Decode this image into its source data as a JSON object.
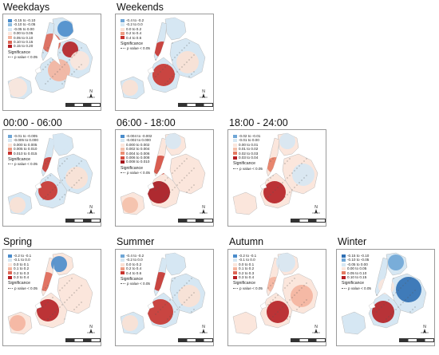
{
  "panels": [
    {
      "id": "weekdays",
      "title": "Weekdays",
      "legend": [
        "-0.15 to -0.10",
        "-0.10 to -0.05",
        "-0.05 to 0.00",
        "0.00 to 0.05",
        "0.05 to 0.10",
        "0.10 to 0.15",
        "0.15 to 0.20"
      ],
      "colors": [
        "#4a8ccb",
        "#8fbde0",
        "#d6e7f3",
        "#fbe6dc",
        "#f4b49e",
        "#de6655",
        "#b51f24"
      ],
      "significance_label": "Significance",
      "p_label": "p value < 0.05"
    },
    {
      "id": "weekends",
      "title": "Weekends",
      "legend": [
        "-0.4 to -0.2",
        "-0.2 to 0.0",
        "0.0 to 0.2",
        "0.2 to 0.4",
        "0.4 to 0.6"
      ],
      "colors": [
        "#6fa6d6",
        "#d6e7f3",
        "#fbe1d4",
        "#ee9b82",
        "#c8332d"
      ],
      "significance_label": "Significance",
      "p_label": "p value < 0.05"
    },
    {
      "id": "night",
      "title": "00:00 - 06:00",
      "legend": [
        "-0.01 to -0.005",
        "-0.005 to 0.000",
        "0.000 to 0.005",
        "0.005 to 0.010",
        "0.010 to 0.015"
      ],
      "colors": [
        "#6fa6d6",
        "#d6e7f3",
        "#fbe1d4",
        "#ee9b82",
        "#c8332d"
      ],
      "significance_label": "Significance",
      "p_label": "p value < 0.05"
    },
    {
      "id": "day",
      "title": "06:00 - 18:00",
      "legend": [
        "-0.004 to -0.002",
        "-0.002 to 0.000",
        "0.000 to 0.002",
        "0.002 to 0.004",
        "0.004 to 0.006",
        "0.006 to 0.008",
        "0.008 to 0.010"
      ],
      "colors": [
        "#4a8ccb",
        "#d6e7f3",
        "#fbe6dc",
        "#f4c0aa",
        "#ec8f74",
        "#d54e40",
        "#a5151d"
      ],
      "significance_label": "Significance",
      "p_label": "p value < 0.05"
    },
    {
      "id": "evening",
      "title": "18:00 - 24:00",
      "legend": [
        "-0.02 to -0.01",
        "-0.01 to 0.00",
        "0.00 to 0.01",
        "0.01 to 0.02",
        "0.02 to 0.03",
        "0.03 to 0.04"
      ],
      "colors": [
        "#6fa6d6",
        "#d6e7f3",
        "#fbe6dc",
        "#f4c0aa",
        "#e57b62",
        "#b51f24"
      ],
      "significance_label": "Significance",
      "p_label": "p value < 0.05"
    },
    {
      "id": "spring",
      "title": "Spring",
      "legend": [
        "-0.2 to -0.1",
        "-0.1 to 0.0",
        "0.0 to 0.1",
        "0.1 to 0.2",
        "0.2 to 0.3",
        "0.3 to 0.4"
      ],
      "colors": [
        "#4a8ccb",
        "#d6e7f3",
        "#fbe6dc",
        "#f4b49e",
        "#de6655",
        "#b51f24"
      ],
      "significance_label": "Significance",
      "p_label": "p value < 0.05"
    },
    {
      "id": "summer",
      "title": "Summer",
      "legend": [
        "-0.4 to -0.2",
        "-0.2 to 0.0",
        "0.0 to 0.2",
        "0.2 to 0.4",
        "0.4 to 0.6"
      ],
      "colors": [
        "#6fa6d6",
        "#d6e7f3",
        "#fbe1d4",
        "#ee9b82",
        "#c8332d"
      ],
      "significance_label": "Significance",
      "p_label": "p value < 0.05"
    },
    {
      "id": "autumn",
      "title": "Autumn",
      "legend": [
        "-0.2 to -0.1",
        "-0.1 to 0.0",
        "0.0 to 0.1",
        "0.1 to 0.2",
        "0.2 to 0.3",
        "0.3 to 0.4"
      ],
      "colors": [
        "#4a8ccb",
        "#d6e7f3",
        "#fbe6dc",
        "#f4b49e",
        "#de6655",
        "#b51f24"
      ],
      "significance_label": "Significance",
      "p_label": "p value < 0.05"
    },
    {
      "id": "winter",
      "title": "Winter",
      "legend": [
        "-0.15 to -0.10",
        "-0.10 to -0.05",
        "-0.05 to 0.00",
        "0.00 to 0.05",
        "0.05 to 0.10",
        "0.10 to 0.15"
      ],
      "colors": [
        "#2f6fb3",
        "#6fa6d6",
        "#d6e7f3",
        "#fbe6dc",
        "#e57b62",
        "#b51f24"
      ],
      "significance_label": "Significance",
      "p_label": "p value < 0.05"
    }
  ],
  "compass_label": "N"
}
